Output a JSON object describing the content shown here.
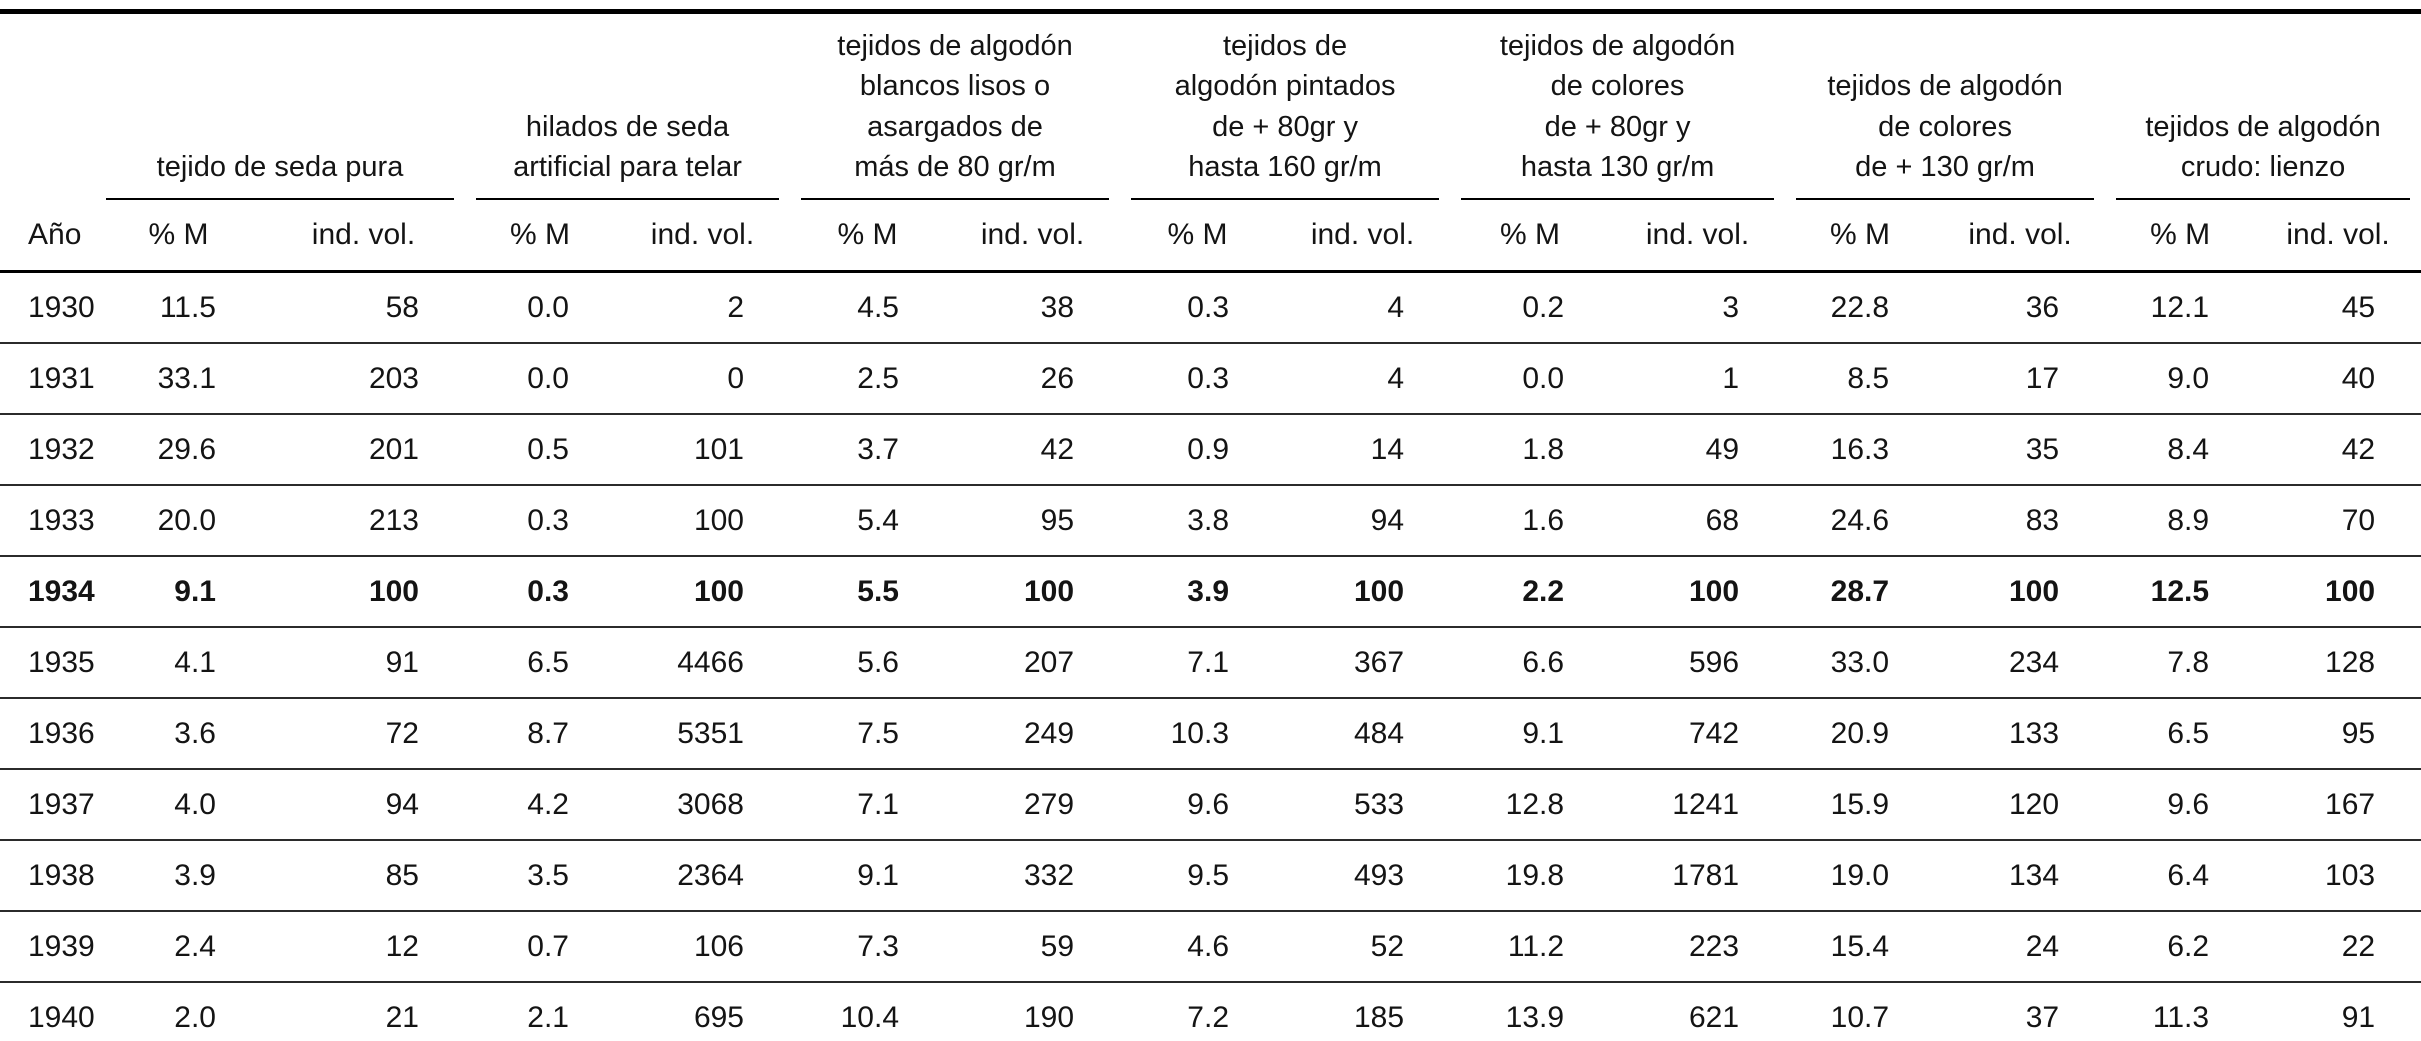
{
  "colors": {
    "background": "#ffffff",
    "text": "#141414",
    "rule": "#000000"
  },
  "chart_data": {
    "type": "table",
    "row_key": "Año",
    "pct_label": "% M",
    "vol_label": "ind. vol.",
    "base_year_bold": "1934",
    "column_groups": [
      {
        "title": "tejido de seda pura"
      },
      {
        "title": "hilados de seda\nartificial para telar"
      },
      {
        "title": "tejidos de algodón\nblancos lisos o\nasargados de\nmás de 80 gr/m"
      },
      {
        "title": "tejidos de\nalgodón pintados\nde + 80gr y\nhasta 160 gr/m"
      },
      {
        "title": "tejidos de algodón\nde colores\nde + 80gr y\nhasta 130 gr/m"
      },
      {
        "title": "tejidos de algodón\nde colores\nde + 130 gr/m"
      },
      {
        "title": "tejidos de algodón\ncrudo: lienzo"
      }
    ],
    "rows": [
      {
        "year": "1930",
        "bold": false,
        "values": [
          "11.5",
          "58",
          "0.0",
          "2",
          "4.5",
          "38",
          "0.3",
          "4",
          "0.2",
          "3",
          "22.8",
          "36",
          "12.1",
          "45"
        ]
      },
      {
        "year": "1931",
        "bold": false,
        "values": [
          "33.1",
          "203",
          "0.0",
          "0",
          "2.5",
          "26",
          "0.3",
          "4",
          "0.0",
          "1",
          "8.5",
          "17",
          "9.0",
          "40"
        ]
      },
      {
        "year": "1932",
        "bold": false,
        "values": [
          "29.6",
          "201",
          "0.5",
          "101",
          "3.7",
          "42",
          "0.9",
          "14",
          "1.8",
          "49",
          "16.3",
          "35",
          "8.4",
          "42"
        ]
      },
      {
        "year": "1933",
        "bold": false,
        "values": [
          "20.0",
          "213",
          "0.3",
          "100",
          "5.4",
          "95",
          "3.8",
          "94",
          "1.6",
          "68",
          "24.6",
          "83",
          "8.9",
          "70"
        ]
      },
      {
        "year": "1934",
        "bold": true,
        "values": [
          "9.1",
          "100",
          "0.3",
          "100",
          "5.5",
          "100",
          "3.9",
          "100",
          "2.2",
          "100",
          "28.7",
          "100",
          "12.5",
          "100"
        ]
      },
      {
        "year": "1935",
        "bold": false,
        "values": [
          "4.1",
          "91",
          "6.5",
          "4466",
          "5.6",
          "207",
          "7.1",
          "367",
          "6.6",
          "596",
          "33.0",
          "234",
          "7.8",
          "128"
        ]
      },
      {
        "year": "1936",
        "bold": false,
        "values": [
          "3.6",
          "72",
          "8.7",
          "5351",
          "7.5",
          "249",
          "10.3",
          "484",
          "9.1",
          "742",
          "20.9",
          "133",
          "6.5",
          "95"
        ]
      },
      {
        "year": "1937",
        "bold": false,
        "values": [
          "4.0",
          "94",
          "4.2",
          "3068",
          "7.1",
          "279",
          "9.6",
          "533",
          "12.8",
          "1241",
          "15.9",
          "120",
          "9.6",
          "167"
        ]
      },
      {
        "year": "1938",
        "bold": false,
        "values": [
          "3.9",
          "85",
          "3.5",
          "2364",
          "9.1",
          "332",
          "9.5",
          "493",
          "19.8",
          "1781",
          "19.0",
          "134",
          "6.4",
          "103"
        ]
      },
      {
        "year": "1939",
        "bold": false,
        "values": [
          "2.4",
          "12",
          "0.7",
          "106",
          "7.3",
          "59",
          "4.6",
          "52",
          "11.2",
          "223",
          "15.4",
          "24",
          "6.2",
          "22"
        ]
      },
      {
        "year": "1940",
        "bold": false,
        "values": [
          "2.0",
          "21",
          "2.1",
          "695",
          "10.4",
          "190",
          "7.2",
          "185",
          "13.9",
          "621",
          "10.7",
          "37",
          "11.3",
          "91"
        ]
      }
    ]
  }
}
